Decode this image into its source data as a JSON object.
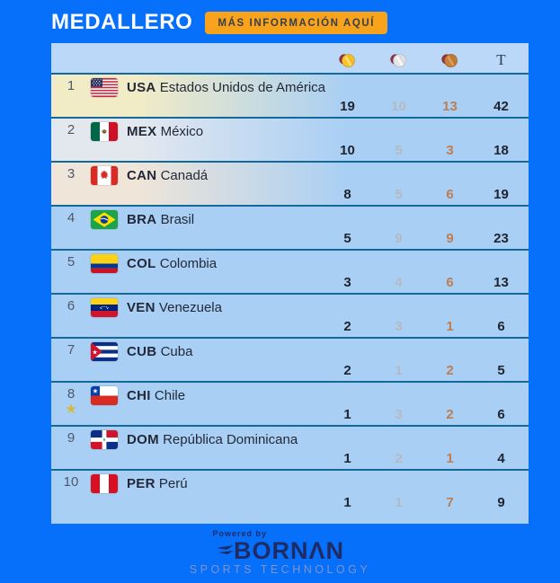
{
  "page": {
    "background_color": "#0670FA"
  },
  "header": {
    "title": "MEDALLERO",
    "button_label": "MÁS INFORMACIÓN AQUÍ",
    "button_color": "#F9A21B"
  },
  "table": {
    "columns": {
      "gold_icon": "gold-medal-icon",
      "silver_icon": "silver-medal-icon",
      "bronze_icon": "bronze-medal-icon",
      "total_label": "T"
    },
    "colors": {
      "gold_value": "#20242F",
      "silver_value": "#B4BAC2",
      "bronze_value": "#BC7E52",
      "total_value": "#20242F",
      "separator": "#15689A",
      "highlight_gold": "#F2ECC6",
      "highlight_silver": "#E3E8EF",
      "highlight_bronze": "#EFE5D8",
      "gold_icon": "#F6C62E",
      "silver_icon": "#E6E6E8",
      "bronze_icon": "#C8803A",
      "host_star": "#D3B93C"
    },
    "rows": [
      {
        "rank": "1",
        "code": "USA",
        "flag": "USA",
        "name": "Estados Unidos de América",
        "gold": "19",
        "silver": "10",
        "bronze": "13",
        "total": "42",
        "highlight": "gold",
        "host": false
      },
      {
        "rank": "2",
        "code": "MEX",
        "flag": "MEX",
        "name": "México",
        "gold": "10",
        "silver": "5",
        "bronze": "3",
        "total": "18",
        "highlight": "silver",
        "host": false
      },
      {
        "rank": "3",
        "code": "CAN",
        "flag": "CAN",
        "name": "Canadá",
        "gold": "8",
        "silver": "5",
        "bronze": "6",
        "total": "19",
        "highlight": "bronze",
        "host": false
      },
      {
        "rank": "4",
        "code": "BRA",
        "flag": "BRA",
        "name": "Brasil",
        "gold": "5",
        "silver": "9",
        "bronze": "9",
        "total": "23",
        "highlight": null,
        "host": false
      },
      {
        "rank": "5",
        "code": "COL",
        "flag": "COL",
        "name": "Colombia",
        "gold": "3",
        "silver": "4",
        "bronze": "6",
        "total": "13",
        "highlight": null,
        "host": false
      },
      {
        "rank": "6",
        "code": "VEN",
        "flag": "VEN",
        "name": "Venezuela",
        "gold": "2",
        "silver": "3",
        "bronze": "1",
        "total": "6",
        "highlight": null,
        "host": false
      },
      {
        "rank": "7",
        "code": "CUB",
        "flag": "CUB",
        "name": "Cuba",
        "gold": "2",
        "silver": "1",
        "bronze": "2",
        "total": "5",
        "highlight": null,
        "host": false
      },
      {
        "rank": "8",
        "code": "CHI",
        "flag": "CHI",
        "name": "Chile",
        "gold": "1",
        "silver": "3",
        "bronze": "2",
        "total": "6",
        "highlight": null,
        "host": true
      },
      {
        "rank": "9",
        "code": "DOM",
        "flag": "DOM",
        "name": "República Dominicana",
        "gold": "1",
        "silver": "2",
        "bronze": "1",
        "total": "4",
        "highlight": null,
        "host": false
      },
      {
        "rank": "10",
        "code": "PER",
        "flag": "PER",
        "name": "Perú",
        "gold": "1",
        "silver": "1",
        "bronze": "7",
        "total": "9",
        "highlight": null,
        "host": false
      }
    ]
  },
  "footer": {
    "powered_by": "Powered by",
    "brand": "BORNΛN",
    "tagline": "SPORTS TECHNOLOGY",
    "brand_color": "#1D2B66"
  }
}
